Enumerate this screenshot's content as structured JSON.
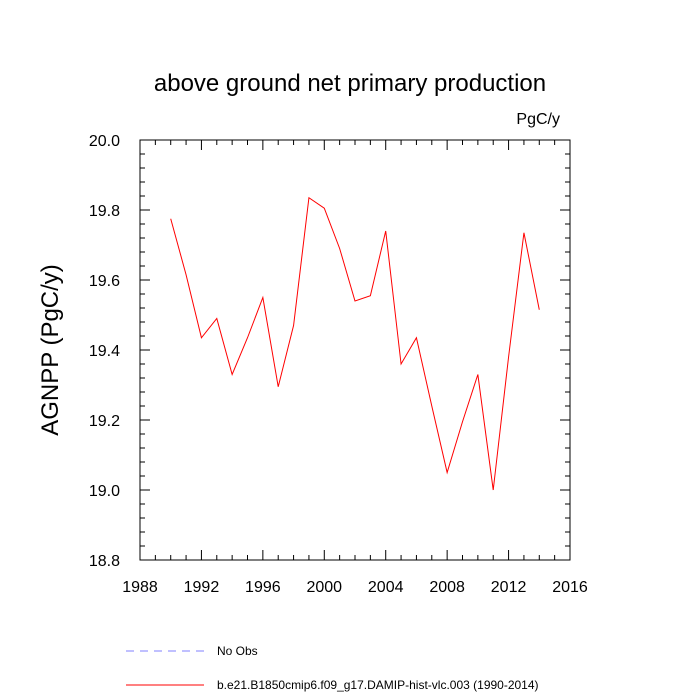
{
  "chart_data": {
    "type": "line",
    "title": "above ground net primary production",
    "units": "PgC/y",
    "ylabel": "AGNPP  (PgC/y)",
    "xlabel": "",
    "xlim": [
      1988,
      2016
    ],
    "ylim": [
      18.8,
      20.0
    ],
    "xticks": [
      "1988",
      "1992",
      "1996",
      "2000",
      "2004",
      "2008",
      "2012",
      "2016"
    ],
    "yticks": [
      "18.8",
      "19.0",
      "19.2",
      "19.4",
      "19.6",
      "19.8",
      "20.0"
    ],
    "grid": false,
    "legend_placement": "bottom",
    "series": [
      {
        "name": "b.e21.B1850cmip6.f09_g17.DAMIP-hist-vlc.003 (1990-2014)",
        "color": "#ff0000",
        "style": "solid",
        "x": [
          1990,
          1991,
          1992,
          1993,
          1994,
          1995,
          1996,
          1997,
          1998,
          1999,
          2000,
          2001,
          2002,
          2003,
          2004,
          2005,
          2006,
          2007,
          2008,
          2009,
          2010,
          2011,
          2012,
          2013,
          2014
        ],
        "y": [
          19.775,
          19.615,
          19.435,
          19.49,
          19.33,
          19.435,
          19.55,
          19.295,
          19.47,
          19.835,
          19.805,
          19.69,
          19.54,
          19.555,
          19.74,
          19.36,
          19.435,
          19.24,
          19.05,
          19.195,
          19.33,
          19.0,
          19.38,
          19.735,
          19.515
        ]
      },
      {
        "name": "No Obs",
        "color": "#8080ff",
        "style": "dashed",
        "x": [],
        "y": []
      }
    ]
  }
}
